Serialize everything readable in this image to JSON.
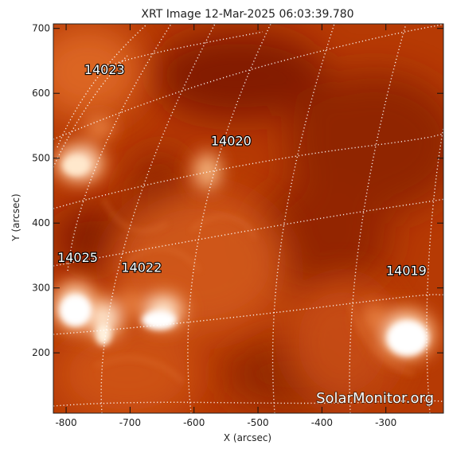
{
  "title": "XRT Image 12-Mar-2025 06:03:39.780",
  "x_axis": {
    "label": "X (arcsec)",
    "range": [
      -820,
      -210
    ],
    "ticks": [
      -800,
      -700,
      -600,
      -500,
      -400,
      -300
    ],
    "tick_labels": [
      "-800",
      "-700",
      "-600",
      "-500",
      "-400",
      "-300"
    ]
  },
  "y_axis": {
    "label": "Y (arcsec)",
    "range": [
      107,
      707
    ],
    "ticks": [
      200,
      300,
      400,
      500,
      600,
      700
    ],
    "tick_labels": [
      "200",
      "300",
      "400",
      "500",
      "600",
      "700"
    ]
  },
  "regions": [
    {
      "id": "14023",
      "x": -740,
      "y": 630
    },
    {
      "id": "14020",
      "x": -542,
      "y": 520
    },
    {
      "id": "14025",
      "x": -782,
      "y": 340
    },
    {
      "id": "14022",
      "x": -682,
      "y": 325
    },
    {
      "id": "14019",
      "x": -268,
      "y": 320
    }
  ],
  "watermark": "SolarMonitor.org",
  "colors": {
    "background": "#b63a04",
    "bright": "#fff4e4",
    "dark": "#6e1200",
    "grid": "#ffffff"
  }
}
